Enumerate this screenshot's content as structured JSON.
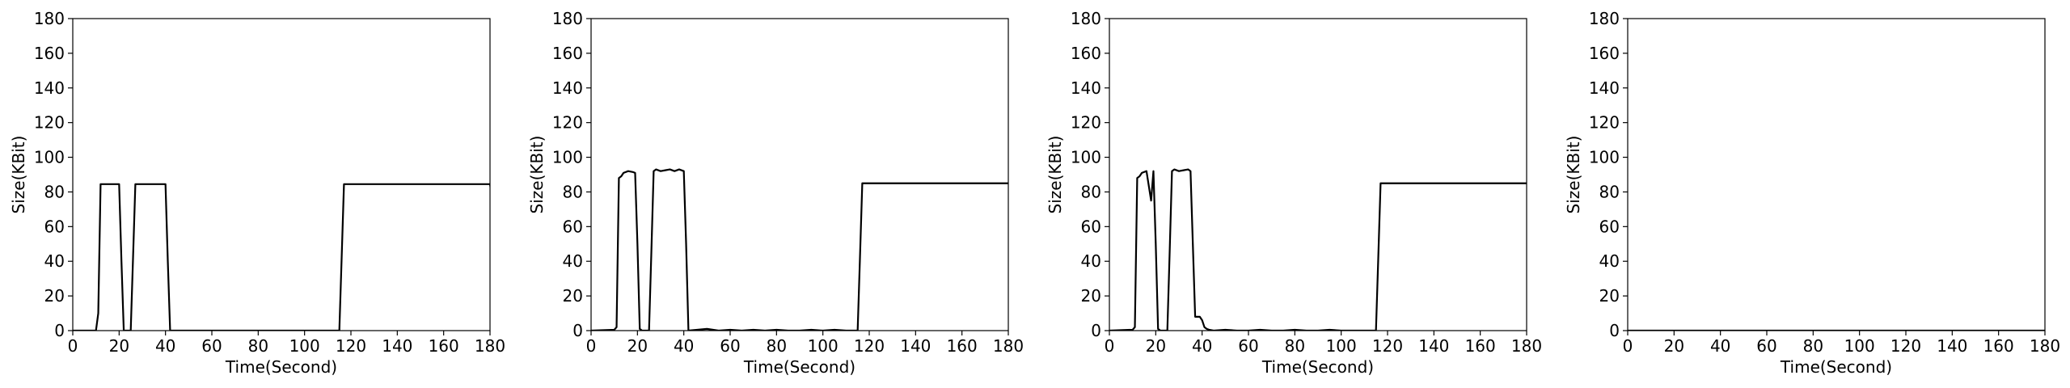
{
  "colors": {
    "line": "#000000",
    "axes": "#000000",
    "background": "#ffffff"
  },
  "chart_data": [
    {
      "type": "line",
      "title": "",
      "xlabel": "Time(Second)",
      "ylabel": "Size(KBit)",
      "xlim": [
        0,
        180
      ],
      "ylim": [
        0,
        180
      ],
      "xticks": [
        0,
        20,
        40,
        60,
        80,
        100,
        120,
        140,
        160,
        180
      ],
      "yticks": [
        0,
        20,
        40,
        60,
        80,
        100,
        120,
        140,
        160,
        180
      ],
      "grid": false,
      "series": [
        {
          "x": [
            0,
            10,
            11,
            12,
            20,
            21,
            22,
            23,
            25,
            26,
            27,
            40,
            41,
            42,
            114,
            115,
            116,
            117,
            180,
            181
          ],
          "y": [
            0,
            0,
            10,
            84.5,
            84.5,
            40,
            0,
            0,
            0,
            42,
            84.5,
            84.5,
            40,
            0,
            0,
            0,
            42,
            84.5,
            84.5,
            76
          ]
        }
      ]
    },
    {
      "type": "line",
      "title": "",
      "xlabel": "Time(Second)",
      "ylabel": "Size(KBit)",
      "xlim": [
        0,
        180
      ],
      "ylim": [
        0,
        180
      ],
      "xticks": [
        0,
        20,
        40,
        60,
        80,
        100,
        120,
        140,
        160,
        180
      ],
      "yticks": [
        0,
        20,
        40,
        60,
        80,
        100,
        120,
        140,
        160,
        180
      ],
      "grid": false,
      "series": [
        {
          "x": [
            0,
            10,
            11,
            12,
            13,
            14,
            16,
            18,
            19,
            20,
            21,
            22,
            23,
            25,
            26,
            27,
            28,
            30,
            32,
            34,
            36,
            38,
            40,
            41,
            42,
            50,
            55,
            60,
            65,
            70,
            75,
            80,
            85,
            90,
            95,
            100,
            105,
            110,
            114,
            115,
            116,
            117,
            180
          ],
          "y": [
            0,
            0.5,
            2,
            88,
            89,
            91,
            92,
            91.5,
            91,
            50,
            1,
            0,
            0,
            0,
            45,
            92,
            93,
            92,
            92.5,
            93,
            92,
            93,
            92,
            50,
            0,
            1,
            0,
            0.5,
            0,
            0.5,
            0,
            0.5,
            0,
            0,
            0.5,
            0,
            0.5,
            0,
            0,
            0,
            42,
            85,
            85
          ]
        }
      ]
    },
    {
      "type": "line",
      "title": "",
      "xlabel": "Time(Second)",
      "ylabel": "Size(KBit)",
      "xlim": [
        0,
        180
      ],
      "ylim": [
        0,
        180
      ],
      "xticks": [
        0,
        20,
        40,
        60,
        80,
        100,
        120,
        140,
        160,
        180
      ],
      "yticks": [
        0,
        20,
        40,
        60,
        80,
        100,
        120,
        140,
        160,
        180
      ],
      "grid": false,
      "series": [
        {
          "x": [
            0,
            10,
            11,
            12,
            13,
            14,
            16,
            18,
            19,
            20,
            21,
            22,
            23,
            25,
            26,
            27,
            28,
            30,
            32,
            34,
            35,
            36,
            37,
            39,
            40,
            41,
            42,
            43,
            45,
            50,
            55,
            60,
            65,
            70,
            75,
            80,
            85,
            90,
            95,
            100,
            105,
            110,
            114,
            115,
            116,
            117,
            180
          ],
          "y": [
            0,
            0.5,
            2,
            88,
            89,
            91,
            92,
            75,
            92,
            50,
            1,
            0,
            0,
            0,
            45,
            92,
            93,
            92,
            92.5,
            93,
            92,
            50,
            8,
            8,
            6,
            2,
            1,
            0.5,
            0,
            0.5,
            0,
            0,
            0.5,
            0,
            0,
            0.5,
            0,
            0,
            0.5,
            0,
            0,
            0,
            0,
            0,
            42,
            85,
            85
          ]
        }
      ]
    },
    {
      "type": "line",
      "title": "",
      "xlabel": "Time(Second)",
      "ylabel": "Size(KBit)",
      "xlim": [
        0,
        180
      ],
      "ylim": [
        0,
        180
      ],
      "xticks": [
        0,
        20,
        40,
        60,
        80,
        100,
        120,
        140,
        160,
        180
      ],
      "yticks": [
        0,
        20,
        40,
        60,
        80,
        100,
        120,
        140,
        160,
        180
      ],
      "grid": false,
      "series": [
        {
          "x": [
            0,
            180
          ],
          "y": [
            0,
            0
          ]
        }
      ]
    }
  ]
}
